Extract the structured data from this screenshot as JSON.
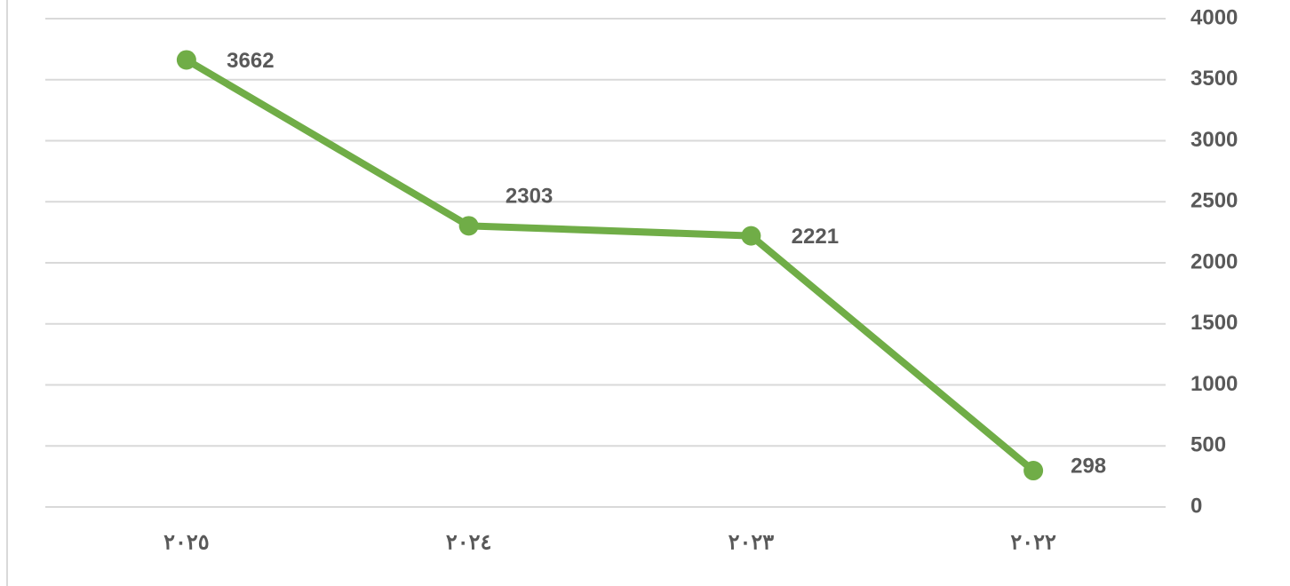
{
  "chart_data": {
    "type": "line",
    "categories": [
      "٢٠٢٥",
      "٢٠٢٤",
      "٢٠٢٣",
      "٢٠٢٢"
    ],
    "series": [
      {
        "color": "#70ad47",
        "values": [
          3662,
          2303,
          2221,
          298
        ]
      }
    ],
    "ylim": [
      0,
      4000
    ],
    "yticks": [
      0,
      500,
      1000,
      1500,
      2000,
      2500,
      3000,
      3500,
      4000
    ],
    "grid": true,
    "y_axis_side": "right",
    "data_labels": true
  }
}
